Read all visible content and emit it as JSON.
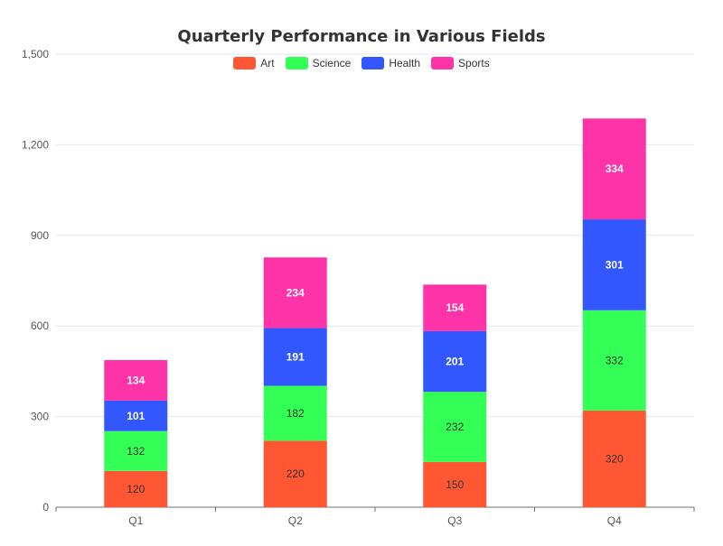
{
  "chart_data": {
    "type": "bar",
    "stacked": true,
    "title": "Quarterly Performance in Various Fields",
    "categories": [
      "Q1",
      "Q2",
      "Q3",
      "Q4"
    ],
    "series": [
      {
        "name": "Art",
        "color": "#FF5733",
        "label_color": "#333333",
        "values": [
          120,
          220,
          150,
          320
        ]
      },
      {
        "name": "Science",
        "color": "#33FF57",
        "label_color": "#333333",
        "values": [
          132,
          182,
          232,
          332
        ]
      },
      {
        "name": "Health",
        "color": "#3357FF",
        "label_color": "#ffffff",
        "values": [
          101,
          191,
          201,
          301
        ]
      },
      {
        "name": "Sports",
        "color": "#FF33A8",
        "label_color": "#ffffff",
        "values": [
          134,
          234,
          154,
          334
        ]
      }
    ],
    "ylim": [
      0,
      1500
    ],
    "yticks": [
      "0",
      "300",
      "600",
      "900",
      "1,200",
      "1,500"
    ],
    "ytick_values": [
      0,
      300,
      600,
      900,
      1200,
      1500
    ],
    "legend_position": "top-center",
    "grid": true
  }
}
